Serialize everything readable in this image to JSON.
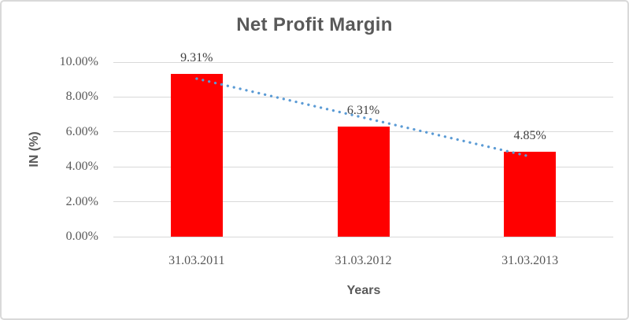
{
  "window": {
    "background_color": "#FFFFFF",
    "border_color": "#D9D9D9"
  },
  "chart_data": {
    "type": "bar",
    "title": "Net Profit Margin",
    "xlabel": "Years",
    "ylabel": "IN (%)",
    "categories": [
      "31.03.2011",
      "31.03.2012",
      "31.03.2013"
    ],
    "series": [
      {
        "name": "Net Profit Margin",
        "values": [
          9.31,
          6.31,
          4.85
        ]
      }
    ],
    "data_labels": [
      "9.31%",
      "6.31%",
      "4.85%"
    ],
    "ylim": [
      0,
      10
    ],
    "ytick_step": 2,
    "ytick_labels": [
      "0.00%",
      "2.00%",
      "4.00%",
      "6.00%",
      "8.00%",
      "10.00%"
    ],
    "grid": true,
    "legend": "none",
    "bar_color": "#FF0000",
    "trendline": {
      "type": "linear",
      "style": "dotted",
      "color": "#5B9BD5"
    },
    "colors": {
      "title": "#595959",
      "axis_title": "#595959",
      "tick_label": "#595959",
      "data_label": "#404040",
      "gridline": "#D9D9D9"
    }
  }
}
